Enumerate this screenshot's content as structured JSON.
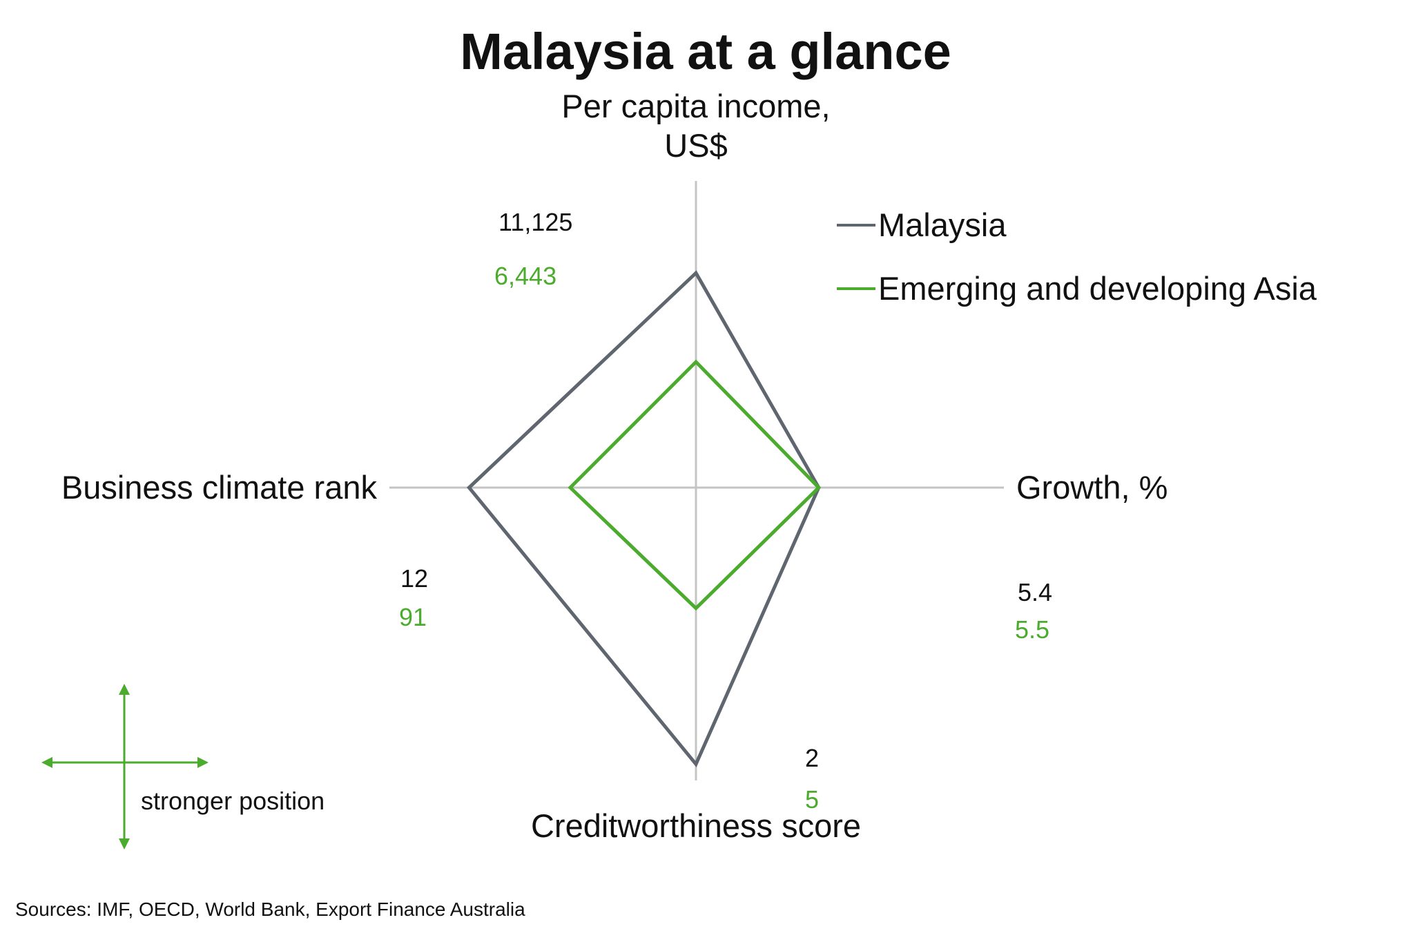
{
  "colors": {
    "malaysia": "#5f6670",
    "asia": "#4aab2c",
    "axis": "#c4c4c4",
    "text": "#111111"
  },
  "chart_data": {
    "type": "radar",
    "title": "Malaysia at a glance",
    "axes": [
      {
        "id": "income",
        "label_lines": [
          "Per capita income,",
          "US$"
        ]
      },
      {
        "id": "growth",
        "label_lines": [
          "Growth, %"
        ]
      },
      {
        "id": "credit",
        "label_lines": [
          "Creditworthiness score"
        ]
      },
      {
        "id": "business",
        "label_lines": [
          "Business climate rank"
        ]
      }
    ],
    "series": [
      {
        "name": "Malaysia",
        "color": "#5f6670",
        "values": {
          "income": 11125,
          "growth": 5.4,
          "credit": 2,
          "business": 12
        },
        "labels": {
          "income": "11,125",
          "growth": "5.4",
          "credit": "2",
          "business": "12"
        },
        "relative_extent": {
          "income": 0.7,
          "growth": 0.38,
          "credit": 0.94,
          "business": 0.74
        }
      },
      {
        "name": "Emerging and developing Asia",
        "color": "#4aab2c",
        "values": {
          "income": 6443,
          "growth": 5.5,
          "credit": 5,
          "business": 91
        },
        "labels": {
          "income": "6,443",
          "growth": "5.5",
          "credit": "5",
          "business": "91"
        },
        "relative_extent": {
          "income": 0.41,
          "growth": 0.38,
          "credit": 0.41,
          "business": 0.41
        }
      }
    ],
    "legend": {
      "position": "top-right",
      "items": [
        "Malaysia",
        "Emerging and developing Asia"
      ]
    },
    "direction_note": "stronger position",
    "source": "Sources: IMF, OECD, World Bank, Export Finance Australia"
  }
}
